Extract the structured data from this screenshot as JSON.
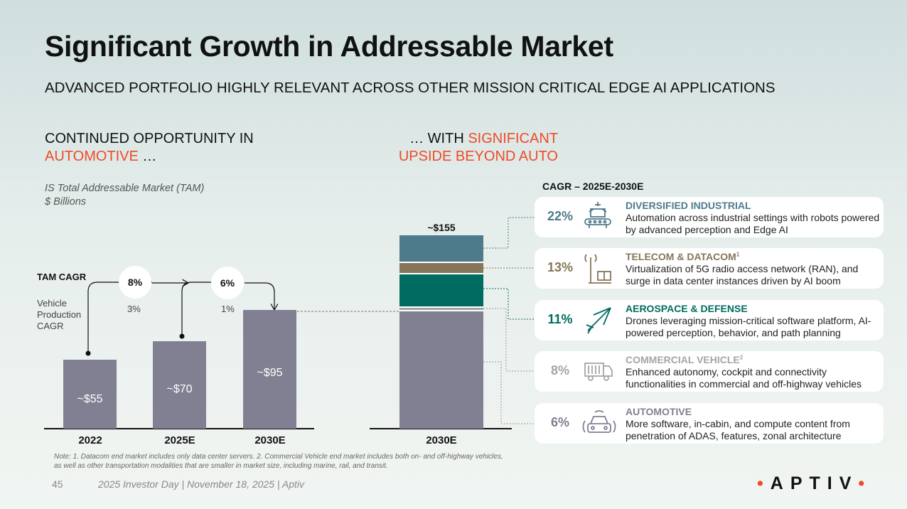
{
  "title": "Significant Growth in Addressable Market",
  "subtitle": "ADVANCED PORTFOLIO HIGHLY RELEVANT ACROSS OTHER MISSION CRITICAL EDGE AI APPLICATIONS",
  "left_heading": {
    "line1": "CONTINUED OPPORTUNITY IN",
    "highlight": "AUTOMOTIVE",
    "suffix": " …"
  },
  "right_heading": {
    "prefix": "… WITH ",
    "highlight1": "SIGNIFICANT",
    "highlight2": "UPSIDE BEYOND AUTO"
  },
  "tam_label": {
    "line1": "IS Total Addressable Market (TAM)",
    "line2": "$ Billions"
  },
  "tam_cagr_label": "TAM CAGR",
  "vehicle_label": "Vehicle Production CAGR",
  "cagr_header": "CAGR – 2025E-2030E",
  "colors": {
    "bar": "#818092",
    "industrial": "#4e7b8b",
    "telecom": "#857659",
    "aero": "#006b60",
    "cv": "#a5a5a5",
    "auto": "#818092",
    "accent": "#f04a24"
  },
  "chart_data": [
    {
      "type": "bar",
      "title": "IS Total Addressable Market (TAM)",
      "ylabel": "$ Billions",
      "categories": [
        "2022",
        "2025E",
        "2030E"
      ],
      "values": [
        55,
        70,
        95
      ],
      "labels": [
        "~$55",
        "~$70",
        "~$95"
      ],
      "tam_cagr": [
        "8%",
        "6%"
      ],
      "vehicle_cagr": [
        "3%",
        "1%"
      ]
    },
    {
      "type": "bar",
      "stacked": true,
      "categories": [
        "2030E"
      ],
      "total_label": "~$155",
      "total": 155,
      "series": [
        {
          "name": "Automotive",
          "value": 95
        },
        {
          "name": "Commercial Vehicle",
          "value": 3
        },
        {
          "name": "Aerospace & Defense",
          "value": 27
        },
        {
          "name": "Telecom & Datacom",
          "value": 9
        },
        {
          "name": "Diversified Industrial",
          "value": 21
        }
      ]
    }
  ],
  "segments": [
    {
      "pct": "22%",
      "name": "DIVERSIFIED INDUSTRIAL",
      "sup": "",
      "desc": "Automation across industrial settings with robots powered by advanced perception and Edge AI",
      "icon": "conveyor-robot-icon"
    },
    {
      "pct": "13%",
      "name": "TELECOM & DATACOM",
      "sup": "1",
      "desc": "Virtualization of 5G radio access network (RAN), and surge in data center instances driven by AI boom",
      "icon": "cell-tower-icon"
    },
    {
      "pct": "11%",
      "name": "AEROSPACE & DEFENSE",
      "sup": "",
      "desc": "Drones leveraging mission-critical software platform, AI-powered perception, behavior, and path planning",
      "icon": "airplane-icon"
    },
    {
      "pct": "8%",
      "name": "COMMERCIAL VEHICLE",
      "sup": "2",
      "desc": "Enhanced autonomy, cockpit and connectivity functionalities in commercial and off-highway vehicles",
      "icon": "truck-icon"
    },
    {
      "pct": "6%",
      "name": "AUTOMOTIVE",
      "sup": "",
      "desc": "More software, in-cabin, and compute content from penetration of ADAS, features, zonal architecture",
      "icon": "connected-car-icon"
    }
  ],
  "note": "Note: 1. Datacom end market includes only data center servers. 2. Commercial Vehicle end market includes both on- and off-highway vehicles, as well as other transportation modalities that are smaller in market size, including marine, rail, and transit.",
  "footer": {
    "page": "45",
    "text": "2025 Investor Day | November 18, 2025 | Aptiv"
  },
  "logo": "APTIV"
}
